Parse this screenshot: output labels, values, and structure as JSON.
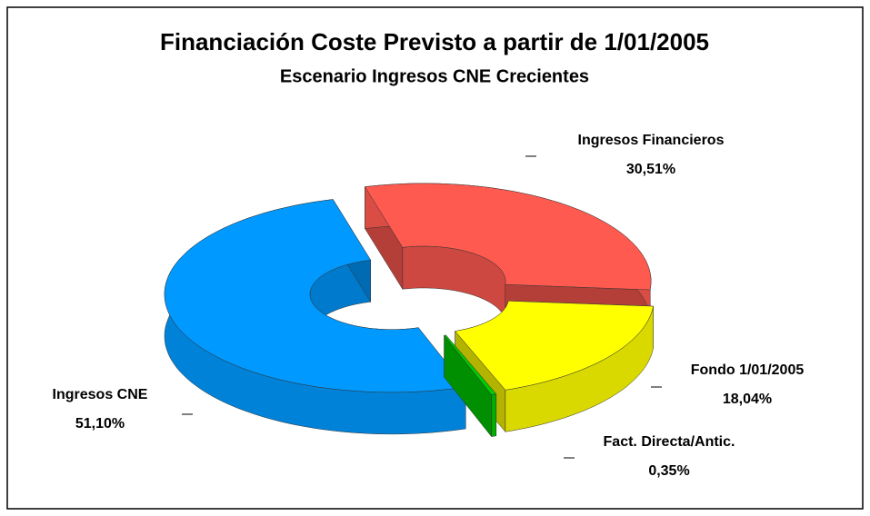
{
  "chart_data": {
    "type": "pie",
    "title": "Financiación Coste Previsto a partir de 1/01/2005",
    "subtitle": "Escenario Ingresos CNE Crecientes",
    "categories": [
      "Ingresos Financieros",
      "Fondo 1/01/2005",
      "Fact. Directa/Antic.",
      "Ingresos CNE"
    ],
    "values": [
      30.51,
      18.04,
      0.35,
      51.1
    ],
    "value_labels": [
      "30,51%",
      "18,04%",
      "0,35%",
      "51,10%"
    ],
    "colors": [
      "#ff5a50",
      "#ffff00",
      "#00cc00",
      "#0099ff"
    ]
  }
}
